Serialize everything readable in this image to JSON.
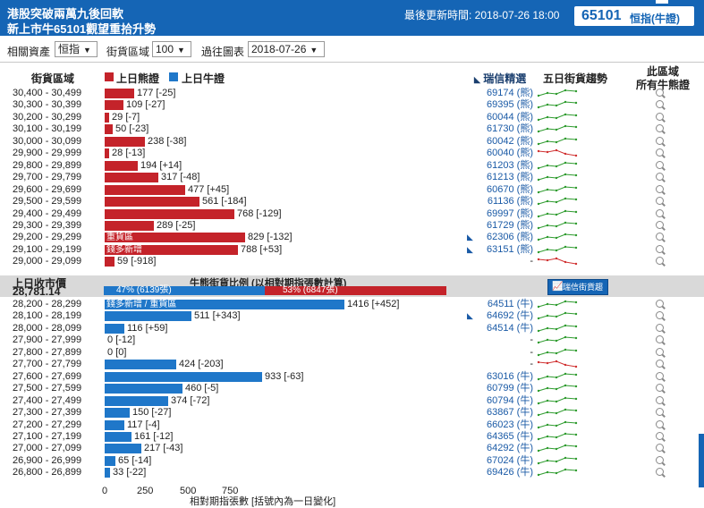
{
  "header": {
    "title1": "港股突破兩萬九後回軟",
    "title2": "新上市牛65101觀望重拾升勢",
    "updated": "最後更新時間: 2018-07-26 18:00",
    "code": "65101",
    "code_name": "恒指(牛證)"
  },
  "toolbar": {
    "asset_label": "相關資產",
    "asset_value": "恒指",
    "range_label": "街貨區域",
    "range_value": "100",
    "chart_label": "過往圖表",
    "chart_value": "2018-07-26"
  },
  "table_header": {
    "range": "街貨區域",
    "bear_legend": "上日熊證",
    "bull_legend": "上日牛證",
    "warrant": "瑞信精選",
    "trend": "五日街貨趨勢",
    "zone1": "此區域",
    "zone2": "所有牛熊證"
  },
  "colors": {
    "bear": "#c4232a",
    "bull": "#1f77c9",
    "header": "#1565b5",
    "up": "#2e9b2e",
    "down": "#d03030"
  },
  "bear_rows": [
    {
      "range": "30,400 - 30,499",
      "value": 177,
      "change": "[-25]",
      "warrant": "69174 (熊)",
      "trend": "up"
    },
    {
      "range": "30,300 - 30,399",
      "value": 109,
      "change": "[-27]",
      "warrant": "69395 (熊)",
      "trend": "up"
    },
    {
      "range": "30,200 - 30,299",
      "value": 29,
      "change": "[-7]",
      "warrant": "60044 (熊)",
      "trend": "up"
    },
    {
      "range": "30,100 - 30,199",
      "value": 50,
      "change": "[-23]",
      "warrant": "61730 (熊)",
      "trend": "up"
    },
    {
      "range": "30,000 - 30,099",
      "value": 238,
      "change": "[-38]",
      "warrant": "60042 (熊)",
      "trend": "up"
    },
    {
      "range": "29,900 - 29,999",
      "value": 28,
      "change": "[-13]",
      "warrant": "60040 (熊)",
      "trend": "down"
    },
    {
      "range": "29,800 - 29,899",
      "value": 194,
      "change": "[+14]",
      "warrant": "61203 (熊)",
      "trend": "up"
    },
    {
      "range": "29,700 - 29,799",
      "value": 317,
      "change": "[-48]",
      "warrant": "61213 (熊)",
      "trend": "up"
    },
    {
      "range": "29,600 - 29,699",
      "value": 477,
      "change": "[+45]",
      "warrant": "60670 (熊)",
      "trend": "up"
    },
    {
      "range": "29,500 - 29,599",
      "value": 561,
      "change": "[-184]",
      "warrant": "61136 (熊)",
      "trend": "up"
    },
    {
      "range": "29,400 - 29,499",
      "value": 768,
      "change": "[-129]",
      "warrant": "69997 (熊)",
      "trend": "up"
    },
    {
      "range": "29,300 - 29,399",
      "value": 289,
      "change": "[-25]",
      "warrant": "61729 (熊)",
      "trend": "up"
    },
    {
      "range": "29,200 - 29,299",
      "value": 829,
      "change": "[-132]",
      "warrant": "62306 (熊)",
      "trend": "up",
      "bar_label": "重貨區",
      "hot": true
    },
    {
      "range": "29,100 - 29,199",
      "value": 788,
      "change": "[+53]",
      "warrant": "63151 (熊)",
      "trend": "up",
      "bar_label": "錢多新增",
      "hot": true
    },
    {
      "range": "29,000 - 29,099",
      "value": 59,
      "change": "[-918]",
      "warrant": "-",
      "trend": "down"
    }
  ],
  "close": {
    "label": "上日收市價",
    "value": "28,781.14",
    "ratio_title": "牛熊街貨比例 (以相對期指張數計算)",
    "bull_pct": 47,
    "bull_text": "47% (6139張)",
    "bear_pct": 53,
    "bear_text": "53% (6847張)",
    "trend_button": "瑞信街貨趨勢"
  },
  "bull_rows": [
    {
      "range": "28,200 - 28,299",
      "value": 1416,
      "change": "[+452]",
      "warrant": "64511 (牛)",
      "trend": "up",
      "bar_label": "錢多新增 / 重貨區"
    },
    {
      "range": "28,100 - 28,199",
      "value": 511,
      "change": "[+343]",
      "warrant": "64692 (牛)",
      "trend": "up",
      "hot": true
    },
    {
      "range": "28,000 - 28,099",
      "value": 116,
      "change": "[+59]",
      "warrant": "64514 (牛)",
      "trend": "up"
    },
    {
      "range": "27,900 - 27,999",
      "value": 0,
      "change": "[-12]",
      "warrant": "-",
      "trend": "up"
    },
    {
      "range": "27,800 - 27,899",
      "value": 0,
      "change": "[0]",
      "warrant": "-",
      "trend": "up"
    },
    {
      "range": "27,700 - 27,799",
      "value": 424,
      "change": "[-203]",
      "warrant": "-",
      "trend": "down"
    },
    {
      "range": "27,600 - 27,699",
      "value": 933,
      "change": "[-63]",
      "warrant": "63016 (牛)",
      "trend": "up"
    },
    {
      "range": "27,500 - 27,599",
      "value": 460,
      "change": "[-5]",
      "warrant": "60799 (牛)",
      "trend": "up"
    },
    {
      "range": "27,400 - 27,499",
      "value": 374,
      "change": "[-72]",
      "warrant": "60794 (牛)",
      "trend": "up"
    },
    {
      "range": "27,300 - 27,399",
      "value": 150,
      "change": "[-27]",
      "warrant": "63867 (牛)",
      "trend": "up"
    },
    {
      "range": "27,200 - 27,299",
      "value": 117,
      "change": "[-4]",
      "warrant": "66023 (牛)",
      "trend": "up"
    },
    {
      "range": "27,100 - 27,199",
      "value": 161,
      "change": "[-12]",
      "warrant": "64365 (牛)",
      "trend": "up"
    },
    {
      "range": "27,000 - 27,099",
      "value": 217,
      "change": "[-43]",
      "warrant": "64292 (牛)",
      "trend": "up"
    },
    {
      "range": "26,900 - 26,999",
      "value": 65,
      "change": "[-14]",
      "warrant": "67024 (牛)",
      "trend": "up"
    },
    {
      "range": "26,800 - 26,899",
      "value": 33,
      "change": "[-22]",
      "warrant": "69426 (牛)",
      "trend": "up"
    }
  ],
  "x_axis": {
    "ticks": [
      "0",
      "250",
      "500",
      "750"
    ],
    "label": "相對期指張數 [括號內為一日變化]"
  }
}
